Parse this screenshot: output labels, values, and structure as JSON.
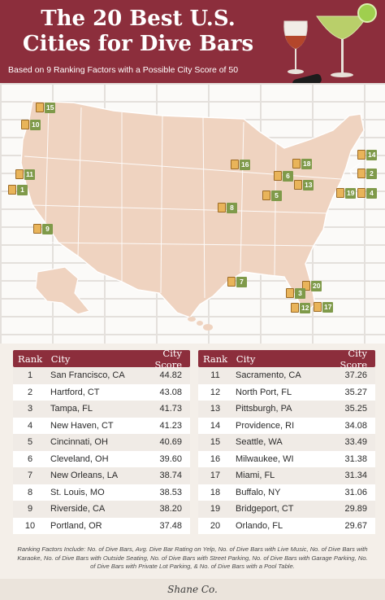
{
  "header": {
    "title_line1": "The 20 Best U.S.",
    "title_line2": "Cities for Dive Bars",
    "subtitle": "Based on 9 Ranking Factors with a Possible City Score of 50"
  },
  "map_pins": [
    "15",
    "10",
    "11",
    "1",
    "9",
    "16",
    "8",
    "7",
    "6",
    "5",
    "18",
    "13",
    "14",
    "2",
    "19",
    "4",
    "20",
    "3",
    "12",
    "17"
  ],
  "table": {
    "headers": {
      "rank": "Rank",
      "city": "City",
      "score": "City Score"
    },
    "left": [
      {
        "rank": "1",
        "city": "San Francisco, CA",
        "score": "44.82"
      },
      {
        "rank": "2",
        "city": "Hartford, CT",
        "score": "43.08"
      },
      {
        "rank": "3",
        "city": "Tampa, FL",
        "score": "41.73"
      },
      {
        "rank": "4",
        "city": "New Haven, CT",
        "score": "41.23"
      },
      {
        "rank": "5",
        "city": "Cincinnati, OH",
        "score": "40.69"
      },
      {
        "rank": "6",
        "city": "Cleveland, OH",
        "score": "39.60"
      },
      {
        "rank": "7",
        "city": "New Orleans, LA",
        "score": "38.74"
      },
      {
        "rank": "8",
        "city": "St. Louis, MO",
        "score": "38.53"
      },
      {
        "rank": "9",
        "city": "Riverside, CA",
        "score": "38.20"
      },
      {
        "rank": "10",
        "city": "Portland, OR",
        "score": "37.48"
      }
    ],
    "right": [
      {
        "rank": "11",
        "city": "Sacramento, CA",
        "score": "37.26"
      },
      {
        "rank": "12",
        "city": "North Port, FL",
        "score": "35.27"
      },
      {
        "rank": "13",
        "city": "Pittsburgh, PA",
        "score": "35.25"
      },
      {
        "rank": "14",
        "city": "Providence, RI",
        "score": "34.08"
      },
      {
        "rank": "15",
        "city": "Seattle, WA",
        "score": "33.49"
      },
      {
        "rank": "16",
        "city": "Milwaukee, WI",
        "score": "31.38"
      },
      {
        "rank": "17",
        "city": "Miami, FL",
        "score": "31.34"
      },
      {
        "rank": "18",
        "city": "Buffalo, NY",
        "score": "31.06"
      },
      {
        "rank": "19",
        "city": "Bridgeport, CT",
        "score": "29.89"
      },
      {
        "rank": "20",
        "city": "Orlando, FL",
        "score": "29.67"
      }
    ]
  },
  "footnote": "Ranking Factors Include: No. of Dive Bars, Avg. Dive Bar Rating on Yelp, No. of Dive Bars with Live Music, No. of Dive Bars with Karaoke, No. of Dive Bars with Outside Seating, No. of Dive Bars with Street Parking, No. of Dive Bars with Garage Parking, No. of Dive Bars with Private Lot Parking, & No. of Dive Bars with a Pool Table.",
  "brand": "Shane Co.",
  "colors": {
    "header": "#8c2e3c",
    "map": "#efd3c0",
    "pin_badge": "#7f9a4a",
    "mug": "#e9b45a"
  }
}
